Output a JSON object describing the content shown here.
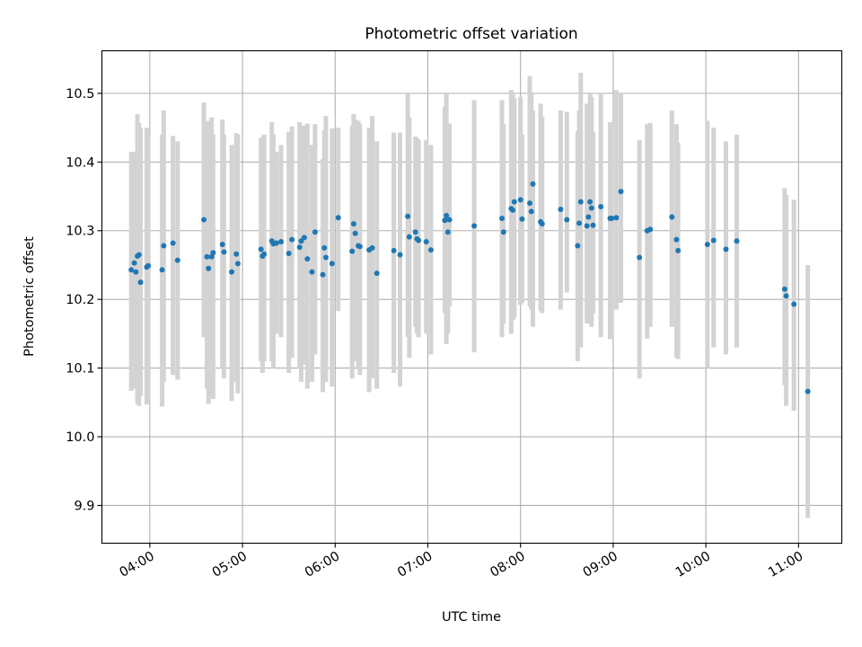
{
  "chart_data": {
    "type": "scatter",
    "title": "Photometric offset variation",
    "xlabel": "UTC time",
    "ylabel": "Photometric offset",
    "x_tick_labels": [
      "04:00",
      "05:00",
      "06:00",
      "07:00",
      "08:00",
      "09:00",
      "10:00",
      "11:00"
    ],
    "y_tick_labels": [
      "9.9",
      "10.0",
      "10.1",
      "10.2",
      "10.3",
      "10.4",
      "10.5"
    ],
    "y_ticks": [
      9.9,
      10.0,
      10.1,
      10.2,
      10.3,
      10.4,
      10.5
    ],
    "x_ticks": [
      "04:00",
      "05:00",
      "06:00",
      "07:00",
      "08:00",
      "09:00",
      "10:00",
      "11:00"
    ],
    "xlim": [
      "03:29",
      "11:28"
    ],
    "ylim": [
      9.845,
      10.562
    ],
    "grid": true,
    "colors": {
      "points": "#1f77b4",
      "error_bars": "#d3d3d3"
    },
    "series": [
      {
        "x": [
          "03:48",
          "03:50",
          "03:51",
          "03:52",
          "03:53",
          "03:54",
          "03:58",
          "03:59",
          "04:08",
          "04:09",
          "04:15",
          "04:18",
          "04:35",
          "04:37",
          "04:38",
          "04:40",
          "04:41",
          "04:47",
          "04:48",
          "04:53",
          "04:56",
          "04:57",
          "05:12",
          "05:13",
          "05:14",
          "05:19",
          "05:20",
          "05:22",
          "05:25",
          "05:30",
          "05:32",
          "05:37",
          "05:38",
          "05:40",
          "05:42",
          "05:45",
          "05:47",
          "05:52",
          "05:53",
          "05:54",
          "05:58",
          "06:02",
          "06:11",
          "06:12",
          "06:13",
          "06:15",
          "06:16",
          "06:22",
          "06:24",
          "06:27",
          "06:38",
          "06:42",
          "06:47",
          "06:48",
          "06:52",
          "06:53",
          "06:54",
          "06:59",
          "07:02",
          "07:11",
          "07:12",
          "07:13",
          "07:14",
          "07:30",
          "07:48",
          "07:49",
          "07:54",
          "07:55",
          "07:56",
          "08:00",
          "08:01",
          "08:06",
          "08:07",
          "08:08",
          "08:13",
          "08:14",
          "08:26",
          "08:30",
          "08:37",
          "08:38",
          "08:39",
          "08:43",
          "08:44",
          "08:45",
          "08:46",
          "08:47",
          "08:52",
          "08:58",
          "08:59",
          "09:02",
          "09:05",
          "09:17",
          "09:22",
          "09:24",
          "09:38",
          "09:41",
          "09:42",
          "10:01",
          "10:05",
          "10:13",
          "10:20",
          "10:51",
          "10:52",
          "10:57",
          "11:06"
        ],
        "y": [
          10.243,
          10.253,
          10.24,
          10.263,
          10.265,
          10.225,
          10.247,
          10.249,
          10.243,
          10.278,
          10.282,
          10.257,
          10.316,
          10.262,
          10.245,
          10.262,
          10.268,
          10.28,
          10.269,
          10.24,
          10.266,
          10.252,
          10.273,
          10.263,
          10.266,
          10.285,
          10.281,
          10.282,
          10.284,
          10.267,
          10.287,
          10.276,
          10.285,
          10.29,
          10.259,
          10.24,
          10.298,
          10.236,
          10.275,
          10.261,
          10.252,
          10.319,
          10.27,
          10.31,
          10.296,
          10.278,
          10.277,
          10.272,
          10.275,
          10.238,
          10.271,
          10.265,
          10.321,
          10.291,
          10.298,
          10.288,
          10.286,
          10.284,
          10.272,
          10.315,
          10.322,
          10.298,
          10.316,
          10.307,
          10.318,
          10.298,
          10.332,
          10.33,
          10.342,
          10.345,
          10.317,
          10.34,
          10.328,
          10.368,
          10.313,
          10.31,
          10.331,
          10.316,
          10.278,
          10.311,
          10.342,
          10.307,
          10.32,
          10.342,
          10.333,
          10.308,
          10.335,
          10.318,
          10.318,
          10.319,
          10.357,
          10.261,
          10.3,
          10.302,
          10.32,
          10.287,
          10.271,
          10.28,
          10.286,
          10.273,
          10.285,
          10.215,
          10.205,
          10.193,
          10.066
        ],
        "err_low": [
          10.067,
          10.07,
          10.08,
          10.048,
          10.045,
          10.06,
          10.047,
          10.05,
          10.044,
          10.08,
          10.09,
          10.083,
          10.145,
          10.07,
          10.048,
          10.06,
          10.055,
          10.1,
          10.085,
          10.052,
          10.08,
          10.063,
          10.11,
          10.093,
          10.11,
          10.11,
          10.1,
          10.15,
          10.145,
          10.093,
          10.115,
          10.1,
          10.08,
          10.105,
          10.07,
          10.08,
          10.12,
          10.065,
          10.1,
          10.08,
          10.073,
          10.183,
          10.085,
          10.12,
          10.11,
          10.098,
          10.09,
          10.065,
          10.085,
          10.07,
          10.093,
          10.073,
          10.145,
          10.115,
          10.16,
          10.15,
          10.145,
          10.15,
          10.12,
          10.18,
          10.135,
          10.15,
          10.19,
          10.123,
          10.145,
          10.165,
          10.15,
          10.17,
          10.173,
          10.192,
          10.195,
          10.19,
          10.185,
          10.16,
          10.183,
          10.18,
          10.185,
          10.21,
          10.11,
          10.145,
          10.13,
          10.165,
          10.165,
          10.205,
          10.16,
          10.18,
          10.145,
          10.142,
          10.145,
          10.185,
          10.195,
          10.085,
          10.143,
          10.16,
          10.16,
          10.115,
          10.113,
          10.1,
          10.13,
          10.12,
          10.13,
          10.075,
          10.045,
          10.038,
          9.882
        ],
        "err_high": [
          10.415,
          10.415,
          10.405,
          10.47,
          10.457,
          10.45,
          10.45,
          10.44,
          10.44,
          10.475,
          10.438,
          10.43,
          10.487,
          10.455,
          10.46,
          10.465,
          10.44,
          10.462,
          10.44,
          10.425,
          10.442,
          10.44,
          10.435,
          10.436,
          10.44,
          10.458,
          10.44,
          10.415,
          10.425,
          10.444,
          10.452,
          10.458,
          10.451,
          10.453,
          10.456,
          10.425,
          10.455,
          10.404,
          10.446,
          10.467,
          10.449,
          10.45,
          10.453,
          10.47,
          10.462,
          10.46,
          10.456,
          10.45,
          10.467,
          10.43,
          10.443,
          10.443,
          10.5,
          10.465,
          10.437,
          10.435,
          10.432,
          10.432,
          10.425,
          10.48,
          10.5,
          10.43,
          10.456,
          10.49,
          10.49,
          10.455,
          10.505,
          10.5,
          10.493,
          10.495,
          10.44,
          10.525,
          10.5,
          10.475,
          10.485,
          10.466,
          10.475,
          10.473,
          10.445,
          10.475,
          10.53,
          10.485,
          10.457,
          10.5,
          10.495,
          10.444,
          10.5,
          10.458,
          10.455,
          10.505,
          10.5,
          10.432,
          10.455,
          10.457,
          10.475,
          10.455,
          10.428,
          10.46,
          10.45,
          10.43,
          10.44,
          10.362,
          10.352,
          10.345,
          10.25
        ]
      }
    ]
  }
}
